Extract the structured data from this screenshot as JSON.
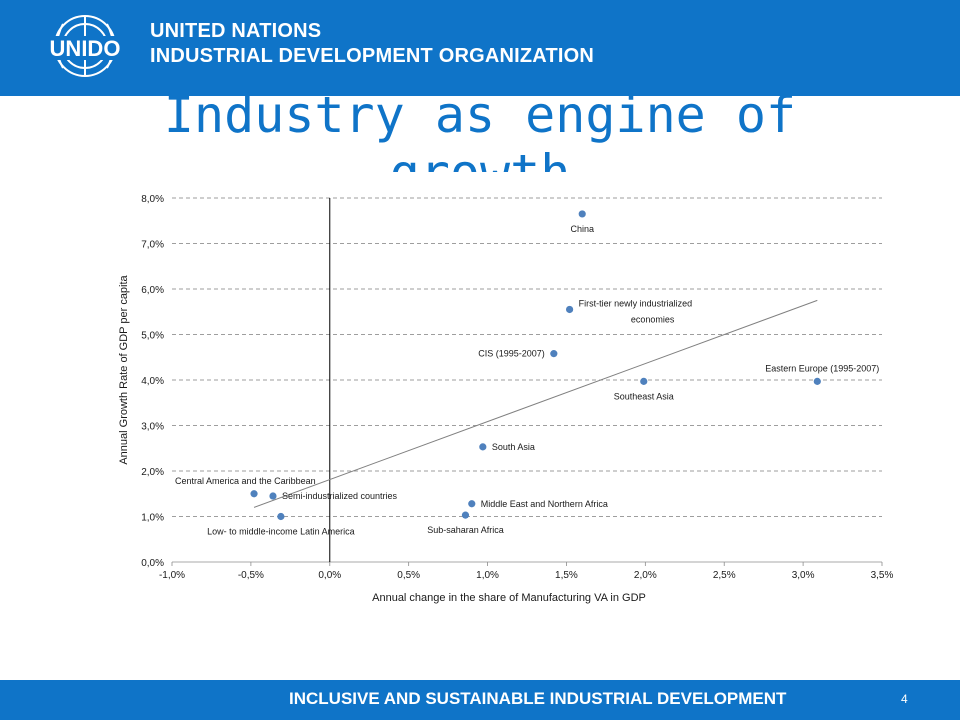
{
  "header": {
    "logo_text": "UNIDO",
    "org_line1": "UNITED NATIONS",
    "org_line2": "INDUSTRIAL DEVELOPMENT ORGANIZATION"
  },
  "slide": {
    "title": "Industry as engine of growth",
    "page_number": "4"
  },
  "footer": {
    "text": "INCLUSIVE AND SUSTAINABLE INDUSTRIAL DEVELOPMENT"
  },
  "colors": {
    "brand_blue": "#0f74c8",
    "point": "#4f81bd",
    "grid": "#7f7f7f",
    "trendline": "#808080"
  },
  "chart_data": {
    "type": "scatter",
    "xlabel": "Annual change in the share of Manufacturing VA in GDP",
    "ylabel": "Annual Growth Rate of GDP per capita",
    "xlim": [
      -1.0,
      3.5
    ],
    "ylim": [
      0.0,
      8.0
    ],
    "x_ticks": [
      -1.0,
      -0.5,
      0.0,
      0.5,
      1.0,
      1.5,
      2.0,
      2.5,
      3.0,
      3.5
    ],
    "y_ticks": [
      0,
      1,
      2,
      3,
      4,
      5,
      6,
      7,
      8
    ],
    "x_tick_labels": [
      "-1,0%",
      "-0,5%",
      "0,0%",
      "0,5%",
      "1,0%",
      "1,5%",
      "2,0%",
      "2,5%",
      "3,0%",
      "3,5%"
    ],
    "y_tick_labels": [
      "0,0%",
      "1,0%",
      "2,0%",
      "3,0%",
      "4,0%",
      "5,0%",
      "6,0%",
      "7,0%",
      "8,0%"
    ],
    "grid": "horizontal dashed",
    "points": [
      {
        "label": "China",
        "x": 1.6,
        "y": 7.65,
        "label_pos": "below"
      },
      {
        "label": "First-tier newly industrialized economies",
        "label_lines": [
          "First-tier newly industrialized",
          "economies"
        ],
        "x": 1.52,
        "y": 5.55,
        "label_pos": "right"
      },
      {
        "label": "CIS (1995-2007)",
        "x": 1.42,
        "y": 4.58,
        "label_pos": "left"
      },
      {
        "label": "Southeast Asia",
        "x": 1.99,
        "y": 3.97,
        "label_pos": "below"
      },
      {
        "label": "Eastern Europe (1995-2007)",
        "x": 3.09,
        "y": 3.97,
        "label_pos": "above"
      },
      {
        "label": "South Asia",
        "x": 0.97,
        "y": 2.53,
        "label_pos": "right"
      },
      {
        "label": "Central America and the Caribbean",
        "x": -0.48,
        "y": 1.5,
        "label_pos": "above"
      },
      {
        "label": "Semi-industrialized countries",
        "x": -0.36,
        "y": 1.45,
        "label_pos": "right"
      },
      {
        "label": "Low- to middle-income Latin America",
        "x": -0.31,
        "y": 1.0,
        "label_pos": "below"
      },
      {
        "label": "Middle East and Northern Africa",
        "x": 0.9,
        "y": 1.28,
        "label_pos": "right"
      },
      {
        "label": "Sub-saharan Africa",
        "x": 0.86,
        "y": 1.03,
        "label_pos": "below"
      }
    ],
    "trendline": {
      "type": "linear",
      "from": {
        "x": -0.48,
        "y": 1.2
      },
      "to": {
        "x": 3.09,
        "y": 5.75
      }
    }
  }
}
